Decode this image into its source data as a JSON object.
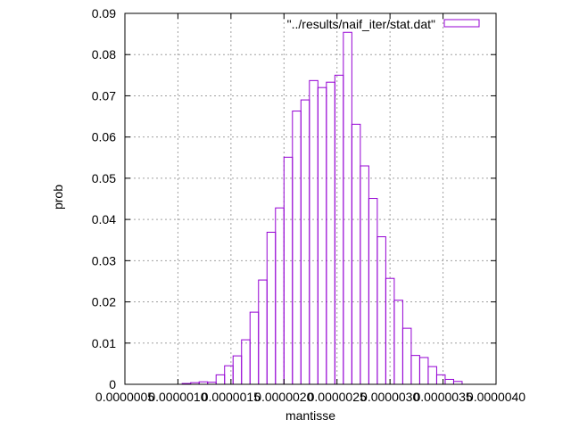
{
  "chart_data": {
    "type": "bar",
    "title": "",
    "xlabel": "mantisse",
    "ylabel": "prob",
    "xlim": [
      5e-07,
      4e-06
    ],
    "ylim": [
      0,
      0.09
    ],
    "x_ticks": [
      {
        "value": 5e-07,
        "label": "0.0000005"
      },
      {
        "value": 1e-06,
        "label": "0.0000010"
      },
      {
        "value": 1.5e-06,
        "label": "0.0000015"
      },
      {
        "value": 2e-06,
        "label": "0.0000020"
      },
      {
        "value": 2.5e-06,
        "label": "0.0000025"
      },
      {
        "value": 3e-06,
        "label": "0.0000030"
      },
      {
        "value": 3.5e-06,
        "label": "0.0000035"
      },
      {
        "value": 4e-06,
        "label": "0.0000040"
      }
    ],
    "y_ticks": [
      {
        "value": 0,
        "label": "0"
      },
      {
        "value": 0.01,
        "label": "0.01"
      },
      {
        "value": 0.02,
        "label": "0.02"
      },
      {
        "value": 0.03,
        "label": "0.03"
      },
      {
        "value": 0.04,
        "label": "0.04"
      },
      {
        "value": 0.05,
        "label": "0.05"
      },
      {
        "value": 0.06,
        "label": "0.06"
      },
      {
        "value": 0.07,
        "label": "0.07"
      },
      {
        "value": 0.08,
        "label": "0.08"
      },
      {
        "value": 0.09,
        "label": "0.09"
      }
    ],
    "grid": true,
    "legend_position": "top-right",
    "bar_width": 8e-08,
    "series": [
      {
        "name": "\"../results/naif_iter/stat.dat\"",
        "color": "#9400d3",
        "points": [
          {
            "x": 1.08e-06,
            "y": 0.0002
          },
          {
            "x": 1.16e-06,
            "y": 0.0004
          },
          {
            "x": 1.24e-06,
            "y": 0.0006
          },
          {
            "x": 1.32e-06,
            "y": 0.0005
          },
          {
            "x": 1.4e-06,
            "y": 0.0023
          },
          {
            "x": 1.48e-06,
            "y": 0.0045
          },
          {
            "x": 1.56e-06,
            "y": 0.0069
          },
          {
            "x": 1.64e-06,
            "y": 0.0108
          },
          {
            "x": 1.72e-06,
            "y": 0.0175
          },
          {
            "x": 1.8e-06,
            "y": 0.0253
          },
          {
            "x": 1.88e-06,
            "y": 0.0369
          },
          {
            "x": 1.96e-06,
            "y": 0.0428
          },
          {
            "x": 2.04e-06,
            "y": 0.0551
          },
          {
            "x": 2.12e-06,
            "y": 0.0663
          },
          {
            "x": 2.2e-06,
            "y": 0.069
          },
          {
            "x": 2.28e-06,
            "y": 0.0737
          },
          {
            "x": 2.36e-06,
            "y": 0.072
          },
          {
            "x": 2.44e-06,
            "y": 0.0733
          },
          {
            "x": 2.52e-06,
            "y": 0.075
          },
          {
            "x": 2.6e-06,
            "y": 0.0854
          },
          {
            "x": 2.68e-06,
            "y": 0.0631
          },
          {
            "x": 2.76e-06,
            "y": 0.053
          },
          {
            "x": 2.84e-06,
            "y": 0.0451
          },
          {
            "x": 2.92e-06,
            "y": 0.0358
          },
          {
            "x": 3e-06,
            "y": 0.0257
          },
          {
            "x": 3.08e-06,
            "y": 0.0204
          },
          {
            "x": 3.16e-06,
            "y": 0.0136
          },
          {
            "x": 3.24e-06,
            "y": 0.007
          },
          {
            "x": 3.32e-06,
            "y": 0.0065
          },
          {
            "x": 3.4e-06,
            "y": 0.0043
          },
          {
            "x": 3.48e-06,
            "y": 0.0023
          },
          {
            "x": 3.56e-06,
            "y": 0.0012
          },
          {
            "x": 3.64e-06,
            "y": 0.0007
          }
        ]
      }
    ]
  }
}
